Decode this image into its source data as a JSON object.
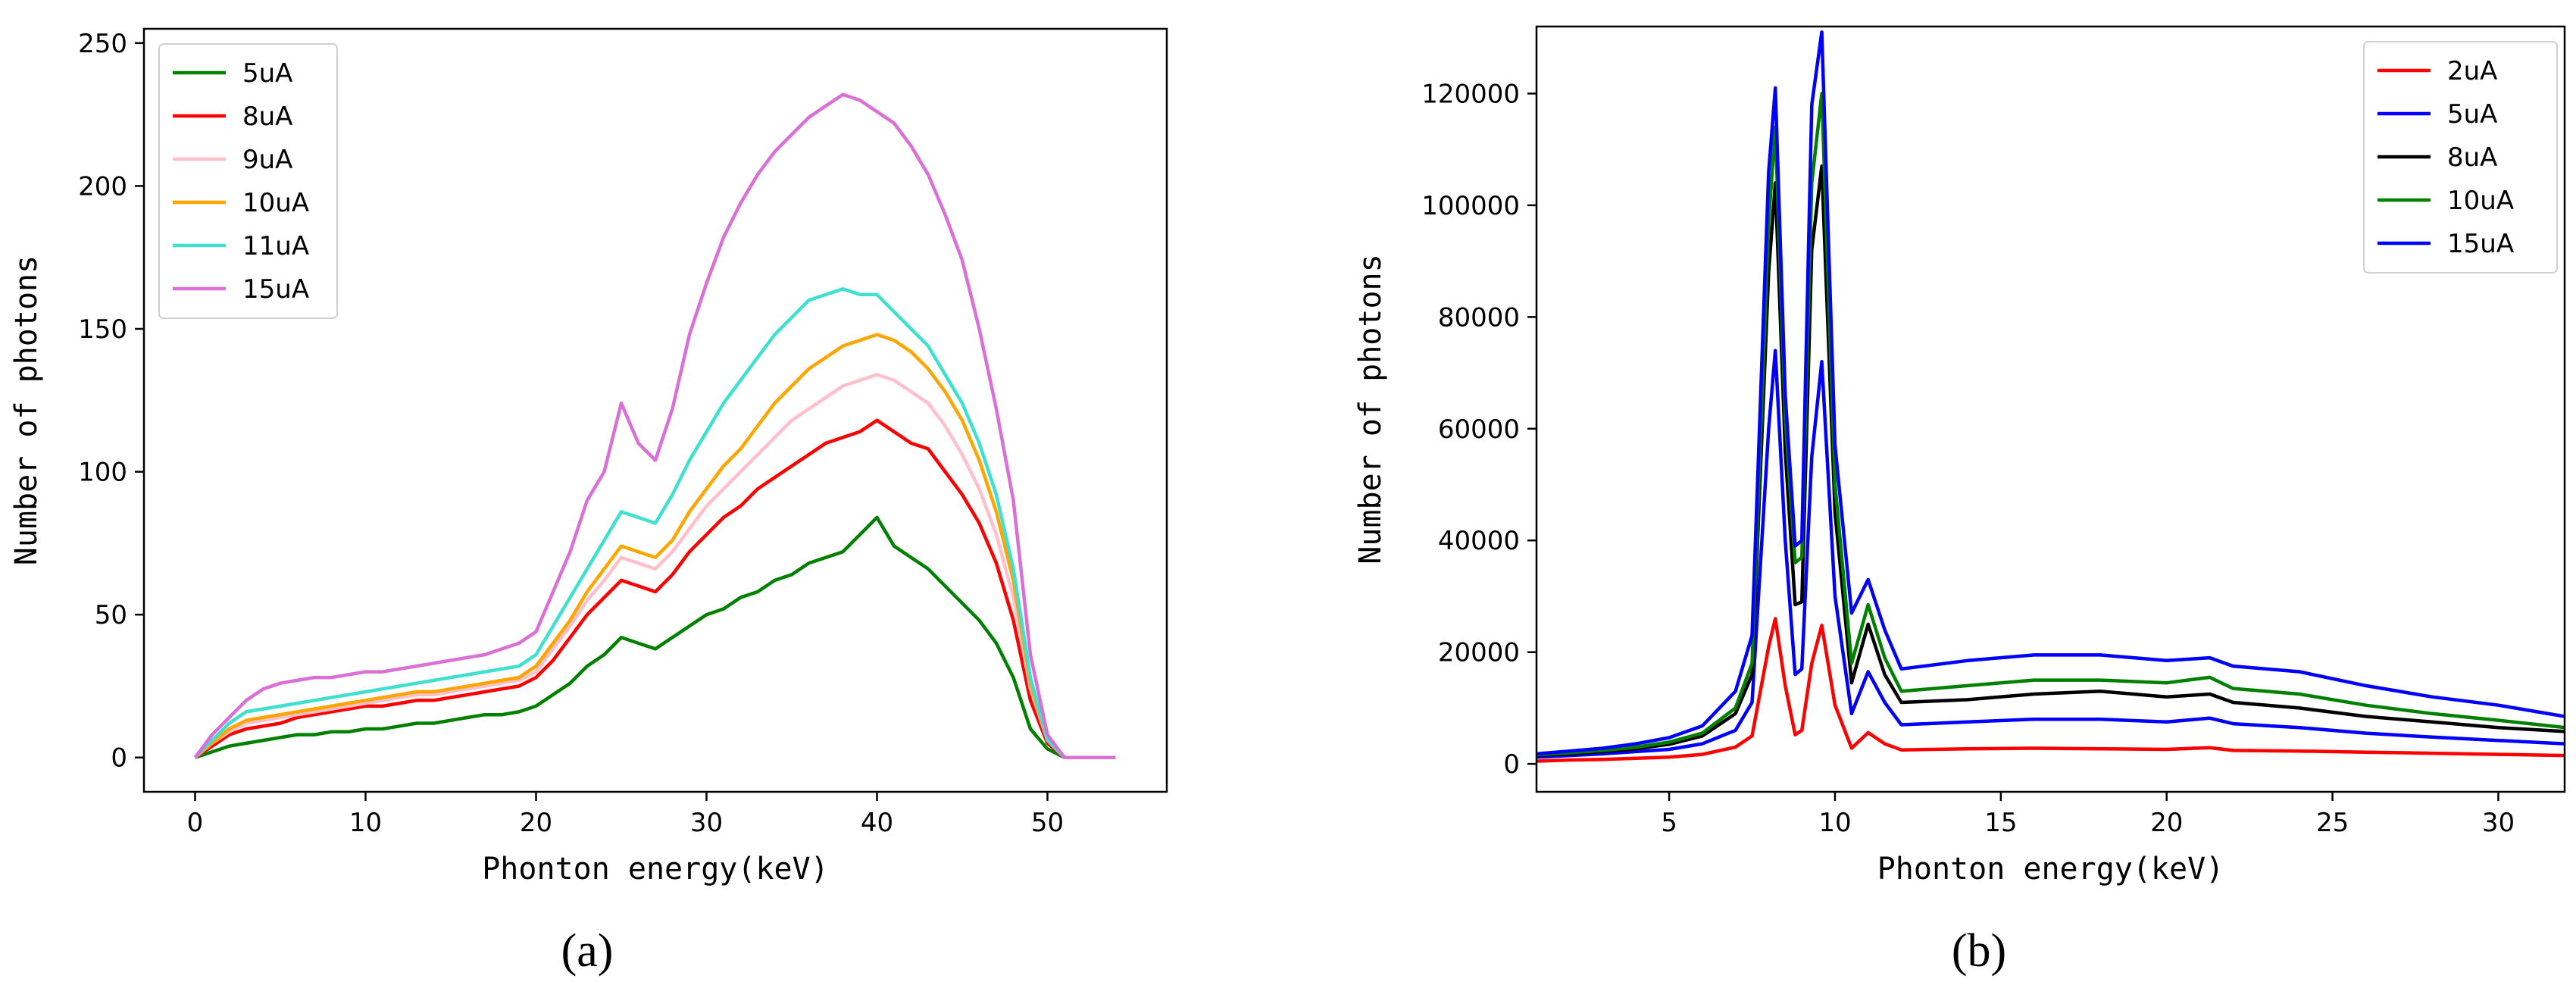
{
  "chart_data": [
    {
      "id": "a",
      "type": "line",
      "caption": "(a)",
      "xlabel": "Phonton energy(keV)",
      "ylabel": "Number of photons",
      "xlim": [
        -3,
        57
      ],
      "ylim": [
        -12,
        255
      ],
      "xticks": [
        0,
        10,
        20,
        30,
        40,
        50
      ],
      "yticks": [
        0,
        50,
        100,
        150,
        200,
        250
      ],
      "legend_position": "top-left",
      "series": [
        {
          "name": "5uA",
          "color": "#008000",
          "x": [
            0,
            1,
            2,
            3,
            4,
            5,
            6,
            7,
            8,
            9,
            10,
            11,
            12,
            13,
            14,
            15,
            16,
            17,
            18,
            19,
            20,
            21,
            22,
            23,
            24,
            25,
            26,
            27,
            28,
            29,
            30,
            31,
            32,
            33,
            34,
            35,
            36,
            37,
            38,
            39,
            40,
            41,
            42,
            43,
            44,
            45,
            46,
            47,
            48,
            49,
            50,
            51,
            52,
            53,
            54
          ],
          "y": [
            0,
            2,
            4,
            5,
            6,
            7,
            8,
            8,
            9,
            9,
            10,
            10,
            11,
            12,
            12,
            13,
            14,
            15,
            15,
            16,
            18,
            22,
            26,
            32,
            36,
            42,
            40,
            38,
            42,
            46,
            50,
            52,
            56,
            58,
            62,
            64,
            68,
            70,
            72,
            78,
            84,
            74,
            70,
            66,
            60,
            54,
            48,
            40,
            28,
            10,
            3,
            0,
            0,
            0,
            0
          ]
        },
        {
          "name": "8uA",
          "color": "#ff0000",
          "x": [
            0,
            1,
            2,
            3,
            4,
            5,
            6,
            7,
            8,
            9,
            10,
            11,
            12,
            13,
            14,
            15,
            16,
            17,
            18,
            19,
            20,
            21,
            22,
            23,
            24,
            25,
            26,
            27,
            28,
            29,
            30,
            31,
            32,
            33,
            34,
            35,
            36,
            37,
            38,
            39,
            40,
            41,
            42,
            43,
            44,
            45,
            46,
            47,
            48,
            49,
            50,
            51,
            52,
            53,
            54
          ],
          "y": [
            0,
            4,
            8,
            10,
            11,
            12,
            14,
            15,
            16,
            17,
            18,
            18,
            19,
            20,
            20,
            21,
            22,
            23,
            24,
            25,
            28,
            34,
            42,
            50,
            56,
            62,
            60,
            58,
            64,
            72,
            78,
            84,
            88,
            94,
            98,
            102,
            106,
            110,
            112,
            114,
            118,
            114,
            110,
            108,
            100,
            92,
            82,
            68,
            48,
            20,
            5,
            0,
            0,
            0,
            0
          ]
        },
        {
          "name": "9uA",
          "color": "#ffc0cb",
          "x": [
            0,
            1,
            2,
            3,
            4,
            5,
            6,
            7,
            8,
            9,
            10,
            11,
            12,
            13,
            14,
            15,
            16,
            17,
            18,
            19,
            20,
            21,
            22,
            23,
            24,
            25,
            26,
            27,
            28,
            29,
            30,
            31,
            32,
            33,
            34,
            35,
            36,
            37,
            38,
            39,
            40,
            41,
            42,
            43,
            44,
            45,
            46,
            47,
            48,
            49,
            50,
            51,
            52,
            53,
            54
          ],
          "y": [
            0,
            5,
            9,
            12,
            13,
            14,
            15,
            16,
            17,
            18,
            19,
            20,
            21,
            22,
            22,
            23,
            24,
            25,
            26,
            27,
            30,
            38,
            46,
            55,
            62,
            70,
            68,
            66,
            72,
            80,
            88,
            94,
            100,
            106,
            112,
            118,
            122,
            126,
            130,
            132,
            134,
            132,
            128,
            124,
            116,
            106,
            94,
            78,
            56,
            24,
            6,
            0,
            0,
            0,
            0
          ]
        },
        {
          "name": "10uA",
          "color": "#ffa500",
          "x": [
            0,
            1,
            2,
            3,
            4,
            5,
            6,
            7,
            8,
            9,
            10,
            11,
            12,
            13,
            14,
            15,
            16,
            17,
            18,
            19,
            20,
            21,
            22,
            23,
            24,
            25,
            26,
            27,
            28,
            29,
            30,
            31,
            32,
            33,
            34,
            35,
            36,
            37,
            38,
            39,
            40,
            41,
            42,
            43,
            44,
            45,
            46,
            47,
            48,
            49,
            50,
            51,
            52,
            53,
            54
          ],
          "y": [
            0,
            5,
            10,
            13,
            14,
            15,
            16,
            17,
            18,
            19,
            20,
            21,
            22,
            23,
            23,
            24,
            25,
            26,
            27,
            28,
            32,
            40,
            48,
            58,
            66,
            74,
            72,
            70,
            76,
            86,
            94,
            102,
            108,
            116,
            124,
            130,
            136,
            140,
            144,
            146,
            148,
            146,
            142,
            136,
            128,
            118,
            104,
            86,
            62,
            26,
            6,
            0,
            0,
            0,
            0
          ]
        },
        {
          "name": "11uA",
          "color": "#40e0d0",
          "x": [
            0,
            1,
            2,
            3,
            4,
            5,
            6,
            7,
            8,
            9,
            10,
            11,
            12,
            13,
            14,
            15,
            16,
            17,
            18,
            19,
            20,
            21,
            22,
            23,
            24,
            25,
            26,
            27,
            28,
            29,
            30,
            31,
            32,
            33,
            34,
            35,
            36,
            37,
            38,
            39,
            40,
            41,
            42,
            43,
            44,
            45,
            46,
            47,
            48,
            49,
            50,
            51,
            52,
            53,
            54
          ],
          "y": [
            0,
            6,
            12,
            16,
            17,
            18,
            19,
            20,
            21,
            22,
            23,
            24,
            25,
            26,
            27,
            28,
            29,
            30,
            31,
            32,
            36,
            46,
            56,
            66,
            76,
            86,
            84,
            82,
            92,
            104,
            114,
            124,
            132,
            140,
            148,
            154,
            160,
            162,
            164,
            162,
            162,
            156,
            150,
            144,
            134,
            124,
            110,
            92,
            66,
            28,
            6,
            0,
            0,
            0,
            0
          ]
        },
        {
          "name": "15uA",
          "color": "#da70d6",
          "x": [
            0,
            1,
            2,
            3,
            4,
            5,
            6,
            7,
            8,
            9,
            10,
            11,
            12,
            13,
            14,
            15,
            16,
            17,
            18,
            19,
            20,
            21,
            22,
            23,
            24,
            25,
            26,
            27,
            28,
            29,
            30,
            31,
            32,
            33,
            34,
            35,
            36,
            37,
            38,
            39,
            40,
            41,
            42,
            43,
            44,
            45,
            46,
            47,
            48,
            49,
            50,
            51,
            52,
            53,
            54
          ],
          "y": [
            0,
            8,
            14,
            20,
            24,
            26,
            27,
            28,
            28,
            29,
            30,
            30,
            31,
            32,
            33,
            34,
            35,
            36,
            38,
            40,
            44,
            58,
            72,
            90,
            100,
            124,
            110,
            104,
            122,
            148,
            166,
            182,
            194,
            204,
            212,
            218,
            224,
            228,
            232,
            230,
            226,
            222,
            214,
            204,
            190,
            174,
            150,
            122,
            90,
            36,
            8,
            0,
            0,
            0,
            0
          ]
        }
      ]
    },
    {
      "id": "b",
      "type": "line",
      "caption": "(b)",
      "xlabel": "Phonton energy(keV)",
      "ylabel": "Number of photons",
      "xlim": [
        1,
        32
      ],
      "ylim": [
        -5000,
        132000
      ],
      "xticks": [
        5,
        10,
        15,
        20,
        25,
        30
      ],
      "yticks": [
        0,
        20000,
        40000,
        60000,
        80000,
        100000,
        120000
      ],
      "legend_position": "top-right",
      "series": [
        {
          "name": "2uA",
          "color": "#ff0000",
          "x": [
            1,
            2,
            3,
            4,
            5,
            6,
            7,
            7.5,
            8,
            8.2,
            8.5,
            8.8,
            9,
            9.3,
            9.6,
            10,
            10.5,
            11,
            11.5,
            12,
            14,
            16,
            18,
            20,
            21.3,
            22,
            24,
            26,
            28,
            30,
            32
          ],
          "y": [
            500,
            700,
            800,
            1000,
            1200,
            1700,
            3000,
            5000,
            21000,
            26000,
            14000,
            5200,
            6000,
            18000,
            24800,
            10500,
            2800,
            5600,
            3600,
            2500,
            2700,
            2800,
            2700,
            2600,
            2900,
            2400,
            2300,
            2100,
            1900,
            1700,
            1500
          ]
        },
        {
          "name": "5uA",
          "color": "#0000ff",
          "x": [
            1,
            2,
            3,
            4,
            5,
            6,
            7,
            7.5,
            8,
            8.2,
            8.5,
            8.8,
            9,
            9.3,
            9.6,
            10,
            10.5,
            11,
            11.5,
            12,
            14,
            16,
            18,
            20,
            21.3,
            22,
            24,
            26,
            28,
            30,
            32
          ],
          "y": [
            1200,
            1500,
            1800,
            2200,
            2600,
            3600,
            6000,
            11000,
            60000,
            74000,
            40000,
            16000,
            17000,
            55000,
            72000,
            30000,
            9000,
            16500,
            11000,
            7000,
            7500,
            8000,
            8000,
            7500,
            8200,
            7200,
            6500,
            5500,
            4800,
            4200,
            3600
          ]
        },
        {
          "name": "8uA",
          "color": "#000000",
          "x": [
            1,
            2,
            3,
            4,
            5,
            6,
            7,
            7.5,
            8,
            8.2,
            8.5,
            8.8,
            9,
            9.3,
            9.6,
            10,
            10.5,
            11,
            11.5,
            12,
            14,
            16,
            18,
            20,
            21.3,
            22,
            24,
            26,
            28,
            30,
            32
          ],
          "y": [
            1500,
            1800,
            2200,
            2700,
            3500,
            5000,
            9000,
            16000,
            88000,
            104000,
            56000,
            28500,
            29000,
            92000,
            107000,
            45000,
            14500,
            25000,
            16000,
            11000,
            11500,
            12500,
            13000,
            12000,
            12500,
            11000,
            10000,
            8500,
            7500,
            6500,
            5800
          ]
        },
        {
          "name": "10uA",
          "color": "#008000",
          "x": [
            1,
            2,
            3,
            4,
            5,
            6,
            7,
            7.5,
            8,
            8.2,
            8.5,
            8.8,
            9,
            9.3,
            9.6,
            10,
            10.5,
            11,
            11.5,
            12,
            14,
            16,
            18,
            20,
            21.3,
            22,
            24,
            26,
            28,
            30,
            32
          ],
          "y": [
            1600,
            2000,
            2400,
            3000,
            3900,
            5500,
            10000,
            18000,
            97000,
            114000,
            62000,
            36000,
            37000,
            104000,
            120000,
            50000,
            18000,
            28500,
            19000,
            13000,
            14000,
            15000,
            15000,
            14500,
            15500,
            13500,
            12500,
            10500,
            9000,
            7800,
            6500
          ]
        },
        {
          "name": "15uA",
          "color": "#0000ff",
          "x": [
            1,
            2,
            3,
            4,
            5,
            6,
            7,
            7.5,
            8,
            8.2,
            8.5,
            8.8,
            9,
            9.3,
            9.6,
            10,
            10.5,
            11,
            11.5,
            12,
            14,
            16,
            18,
            20,
            21.3,
            22,
            24,
            26,
            28,
            30,
            32
          ],
          "y": [
            1800,
            2300,
            2800,
            3600,
            4700,
            6800,
            13000,
            23000,
            106000,
            121000,
            66000,
            39000,
            40000,
            118000,
            131000,
            57000,
            27000,
            33000,
            24000,
            17000,
            18500,
            19500,
            19500,
            18500,
            19000,
            17500,
            16500,
            14000,
            12000,
            10500,
            8500
          ]
        }
      ]
    }
  ]
}
